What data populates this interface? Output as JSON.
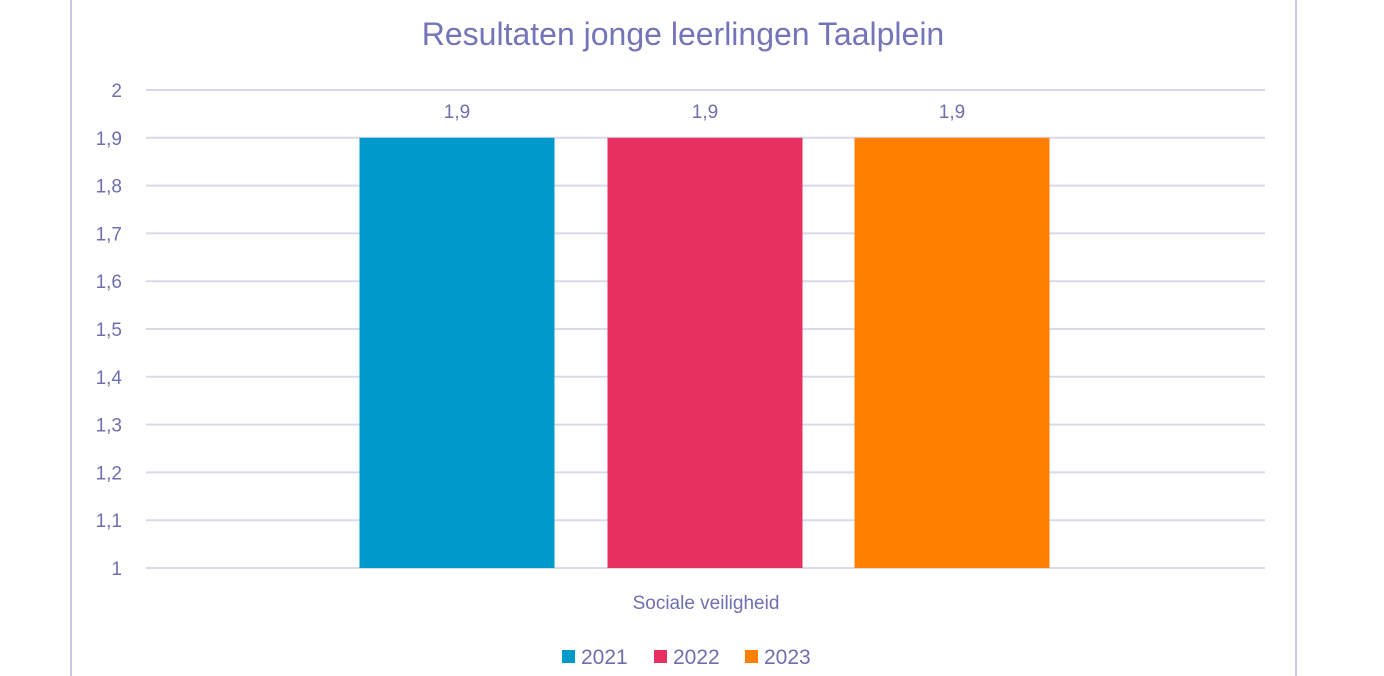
{
  "chart_data": {
    "type": "bar",
    "title": "Resultaten jonge leerlingen Taalplein",
    "xlabel": "",
    "ylabel": "",
    "categories": [
      "Sociale veiligheid"
    ],
    "series": [
      {
        "name": "2021",
        "values": [
          1.9
        ],
        "color": "#0099cc",
        "label": "1,9"
      },
      {
        "name": "2022",
        "values": [
          1.9
        ],
        "color": "#e73060",
        "label": "1,9"
      },
      {
        "name": "2023",
        "values": [
          1.9
        ],
        "color": "#ff8000",
        "label": "1,9"
      }
    ],
    "ylim": [
      1,
      2
    ],
    "y_ticks": [
      {
        "value": 1,
        "label": "1"
      },
      {
        "value": 1.1,
        "label": "1,1"
      },
      {
        "value": 1.2,
        "label": "1,2"
      },
      {
        "value": 1.3,
        "label": "1,3"
      },
      {
        "value": 1.4,
        "label": "1,4"
      },
      {
        "value": 1.5,
        "label": "1,5"
      },
      {
        "value": 1.6,
        "label": "1,6"
      },
      {
        "value": 1.7,
        "label": "1,7"
      },
      {
        "value": 1.8,
        "label": "1,8"
      },
      {
        "value": 1.9,
        "label": "1,9"
      },
      {
        "value": 2,
        "label": "2"
      }
    ],
    "grid": true,
    "legend_position": "bottom",
    "gridline_color": "#d9d9ee",
    "frame_color": "#c8c8e6"
  }
}
